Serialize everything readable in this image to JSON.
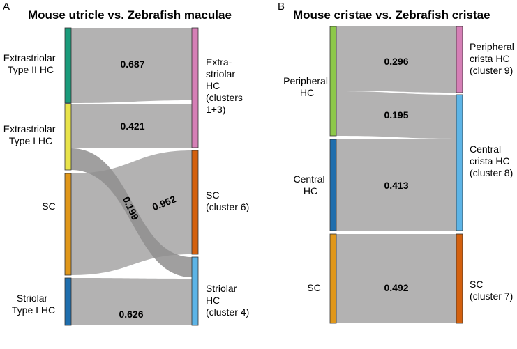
{
  "panelA": {
    "letter": "A",
    "title": "Mouse utricle vs. Zebrafish maculae",
    "left_nodes": [
      {
        "lines": [
          "Extrastriolar",
          "Type II HC"
        ],
        "color": "#1a9a7a"
      },
      {
        "lines": [
          "Extrastriolar",
          "Type I HC"
        ],
        "color": "#e8e34a"
      },
      {
        "lines": [
          "SC"
        ],
        "color": "#e0971a"
      },
      {
        "lines": [
          "Striolar",
          "Type I HC"
        ],
        "color": "#1f6ead"
      }
    ],
    "right_nodes": [
      {
        "lines": [
          "Extra-",
          "striolar",
          "HC",
          "(clusters",
          "1+3)"
        ],
        "color": "#d57fb6"
      },
      {
        "lines": [
          "SC",
          "(cluster 6)"
        ],
        "color": "#d3600e"
      },
      {
        "lines": [
          "Striolar",
          "HC",
          "(cluster 4)"
        ],
        "color": "#5db4e6"
      }
    ],
    "flows": [
      {
        "value": "0.687"
      },
      {
        "value": "0.421"
      },
      {
        "value": "0.199"
      },
      {
        "value": "0.962"
      },
      {
        "value": "0.626"
      }
    ]
  },
  "panelB": {
    "letter": "B",
    "title": "Mouse cristae vs. Zebrafish cristae",
    "left_nodes": [
      {
        "lines": [
          "Peripheral",
          "HC"
        ],
        "color": "#8dc84a"
      },
      {
        "lines": [
          "Central",
          "HC"
        ],
        "color": "#1f6ead"
      },
      {
        "lines": [
          "SC"
        ],
        "color": "#e0971a"
      }
    ],
    "right_nodes": [
      {
        "lines": [
          "Peripheral",
          "crista HC",
          "(cluster 9)"
        ],
        "color": "#d57fb6"
      },
      {
        "lines": [
          "Central",
          "crista HC",
          "(cluster 8)"
        ],
        "color": "#5db4e6"
      },
      {
        "lines": [
          "SC",
          "(cluster 7)"
        ],
        "color": "#d3600e"
      }
    ],
    "flows": [
      {
        "value": "0.296"
      },
      {
        "value": "0.195"
      },
      {
        "value": "0.413"
      },
      {
        "value": "0.492"
      }
    ]
  }
}
